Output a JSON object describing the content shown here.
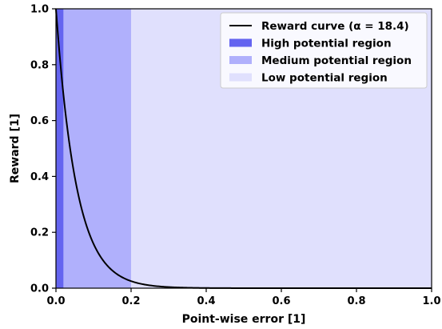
{
  "chart_data": {
    "type": "area",
    "xlabel": "Point-wise error [1]",
    "ylabel": "Reward [1]",
    "xlim": [
      0.0,
      1.0
    ],
    "ylim": [
      0.0,
      1.0
    ],
    "x_ticks": [
      "0.0",
      "0.2",
      "0.4",
      "0.6",
      "0.8",
      "1.0"
    ],
    "y_ticks": [
      "0.0",
      "0.2",
      "0.4",
      "0.6",
      "0.8",
      "1.0"
    ],
    "x_tick_values": [
      0.0,
      0.2,
      0.4,
      0.6,
      0.8,
      1.0
    ],
    "y_tick_values": [
      0.0,
      0.2,
      0.4,
      0.6,
      0.8,
      1.0
    ],
    "grid": false,
    "legend_position": "top-right",
    "curve": {
      "name": "Reward curve (α = 18.4)",
      "alpha": 18.4,
      "x": [
        0.0,
        0.01,
        0.02,
        0.03,
        0.05,
        0.075,
        0.1,
        0.125,
        0.15,
        0.2,
        0.25,
        0.3,
        0.35,
        0.4,
        0.5,
        0.6,
        0.7,
        0.8,
        0.9,
        1.0
      ],
      "y": [
        1.0,
        0.832,
        0.692,
        0.576,
        0.399,
        0.252,
        0.159,
        0.1,
        0.063,
        0.025,
        0.01,
        0.004,
        0.002,
        0.001,
        0.0001,
        0.0,
        0.0,
        0.0,
        0.0,
        0.0
      ],
      "color": "#000000"
    },
    "regions": [
      {
        "name": "High potential region",
        "x_range": [
          0.0,
          0.02
        ],
        "color": "#6464f0"
      },
      {
        "name": "Medium potential region",
        "x_range": [
          0.02,
          0.2
        ],
        "color": "#b0b0fc"
      },
      {
        "name": "Low potential region",
        "x_range": [
          0.2,
          1.0
        ],
        "color": "#e0e0fd"
      }
    ],
    "legend": [
      "Reward curve (α = 18.4)",
      "High potential region",
      "Medium potential region",
      "Low potential region"
    ]
  }
}
